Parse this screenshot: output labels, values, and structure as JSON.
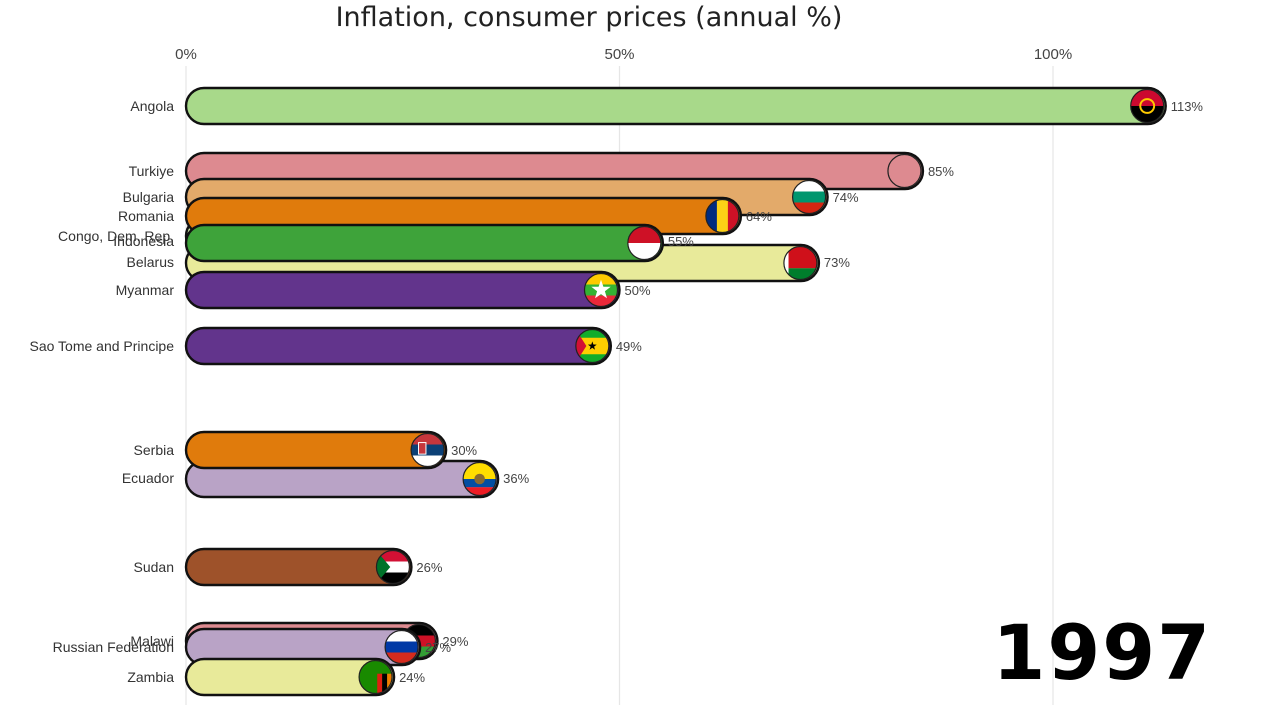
{
  "chart_data": {
    "type": "bar",
    "orientation": "horizontal",
    "title": "Inflation, consumer prices (annual %)",
    "year": "1997",
    "x_ticks": [
      "0%",
      "50%",
      "100%"
    ],
    "x_tick_values": [
      0,
      50,
      100
    ],
    "xlim": [
      0,
      113
    ],
    "grid": true,
    "legend": "none",
    "bars": [
      {
        "category": "Angola",
        "value": 113,
        "label": "113%",
        "color": "#a8d98a",
        "flag": "angola-flag-icon"
      },
      {
        "category": "Turkiye",
        "value": 85,
        "label": "85%",
        "color": "#dd8a90",
        "flag": "turkiye-flag-icon"
      },
      {
        "category": "Bulgaria",
        "value": 74,
        "label": "74%",
        "color": "#e3aa6a",
        "flag": "bulgaria-flag-icon"
      },
      {
        "category": "Romania",
        "value": 64,
        "label": "64%",
        "color": "#e07b0c",
        "flag": "romania-flag-icon"
      },
      {
        "category": "Congo, Dem. Rep.",
        "value": 5,
        "label": "",
        "color": "#cfe8a4",
        "flag": ""
      },
      {
        "category": "Indonesia",
        "value": 55,
        "label": "55%",
        "color": "#3ea33a",
        "flag": "indonesia-flag-icon"
      },
      {
        "category": "Belarus",
        "value": 73,
        "label": "73%",
        "color": "#e8ea9a",
        "flag": "belarus-flag-icon"
      },
      {
        "category": "Myanmar",
        "value": 50,
        "label": "50%",
        "color": "#62348c",
        "flag": "myanmar-flag-icon"
      },
      {
        "category": "Sao Tome and Principe",
        "value": 49,
        "label": "49%",
        "color": "#62348c",
        "flag": "sao-tome-flag-icon"
      },
      {
        "category": "Serbia",
        "value": 30,
        "label": "30%",
        "color": "#e07b0c",
        "flag": "serbia-flag-icon"
      },
      {
        "category": "Ecuador",
        "value": 36,
        "label": "36%",
        "color": "#b9a3c6",
        "flag": "ecuador-flag-icon"
      },
      {
        "category": "Sudan",
        "value": 26,
        "label": "26%",
        "color": "#9e522a",
        "flag": "sudan-flag-icon"
      },
      {
        "category": "Malawi",
        "value": 29,
        "label": "29%",
        "color": "#dd8a90",
        "flag": "malawi-flag-icon"
      },
      {
        "category": "Russian Federation",
        "value": 27,
        "label": "27%",
        "color": "#b9a3c6",
        "flag": "russia-flag-icon"
      },
      {
        "category": "Zambia",
        "value": 24,
        "label": "24%",
        "color": "#e8ea9a",
        "flag": "zambia-flag-icon"
      }
    ]
  }
}
